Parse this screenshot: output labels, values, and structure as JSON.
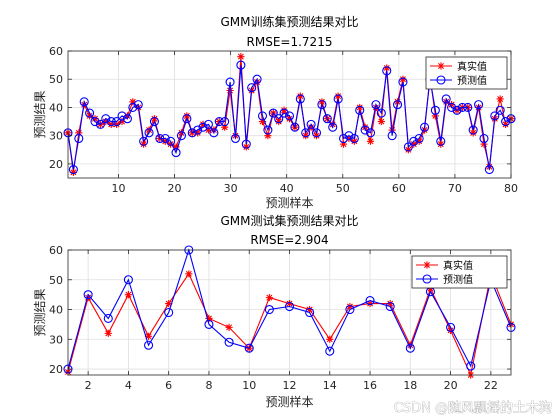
{
  "watermark": "CSDN @随风飘摇的土木狗",
  "legend_markers": {
    "actual": "red-asterisk",
    "predicted": "blue-open-circle"
  },
  "chart_data": [
    {
      "type": "line",
      "title": "GMM训练集预测结果对比",
      "subtitle": "RMSE=1.7215",
      "xlabel": "预测样本",
      "ylabel": "预测结果",
      "xlim": [
        1,
        80
      ],
      "ylim": [
        15,
        60
      ],
      "xticks": [
        10,
        20,
        30,
        40,
        50,
        60,
        70,
        80
      ],
      "yticks": [
        20,
        30,
        40,
        50,
        60
      ],
      "grid": true,
      "legend": "top-right",
      "series": [
        {
          "name": "真实值",
          "color": "#ff0000",
          "marker": "asterisk",
          "values": [
            31,
            17,
            31,
            41,
            37,
            36,
            34,
            35,
            34,
            34,
            35,
            37,
            42,
            40,
            27,
            32,
            36,
            29,
            28,
            27,
            26,
            31,
            37,
            31,
            31,
            34,
            32,
            32,
            35,
            33,
            46,
            30,
            58,
            26,
            46,
            49,
            35,
            30,
            38,
            35,
            39,
            36,
            33,
            44,
            30,
            33,
            30,
            42,
            36,
            34,
            44,
            27,
            29,
            28,
            40,
            33,
            28,
            40,
            35,
            54,
            32,
            42,
            50,
            25,
            27,
            28,
            32,
            51,
            37,
            27,
            42,
            41,
            39,
            40,
            40,
            31,
            40,
            27,
            19,
            36,
            43,
            34,
            36
          ]
        },
        {
          "name": "预测值",
          "color": "#0000ff",
          "marker": "circle",
          "values": [
            31,
            18,
            29,
            42,
            38,
            35,
            34,
            36,
            35,
            35,
            37,
            36,
            40,
            41,
            28,
            31,
            35,
            29,
            29,
            28,
            24,
            30,
            36,
            31,
            32,
            33,
            34,
            31,
            35,
            35,
            49,
            29,
            55,
            27,
            47,
            50,
            37,
            32,
            38,
            36,
            38,
            37,
            33,
            43,
            31,
            34,
            31,
            41,
            36,
            33,
            43,
            29,
            30,
            29,
            39,
            32,
            31,
            41,
            38,
            53,
            30,
            41,
            49,
            26,
            28,
            29,
            33,
            50,
            39,
            28,
            43,
            40,
            39,
            40,
            40,
            32,
            41,
            29,
            18,
            37,
            39,
            35,
            36
          ]
        }
      ]
    },
    {
      "type": "line",
      "title": "GMM测试集预测结果对比",
      "subtitle": "RMSE=2.904",
      "xlabel": "预测样本",
      "ylabel": "预测结果",
      "xlim": [
        1,
        23
      ],
      "ylim": [
        18,
        60
      ],
      "xticks": [
        2,
        4,
        6,
        8,
        10,
        12,
        14,
        16,
        18,
        20,
        22
      ],
      "yticks": [
        20,
        30,
        40,
        50,
        60
      ],
      "grid": true,
      "legend": "top-right",
      "series": [
        {
          "name": "真实值",
          "color": "#ff0000",
          "marker": "asterisk",
          "values": [
            19,
            44,
            32,
            45,
            31,
            42,
            52,
            37,
            34,
            27,
            44,
            42,
            40,
            30,
            41,
            42,
            42,
            28,
            47,
            33,
            18,
            52,
            35
          ]
        },
        {
          "name": "预测值",
          "color": "#0000ff",
          "marker": "circle",
          "values": [
            20,
            45,
            37,
            50,
            28,
            39,
            60,
            35,
            29,
            27,
            40,
            41,
            39,
            26,
            40,
            43,
            41,
            27,
            46,
            34,
            21,
            50,
            34
          ]
        }
      ]
    }
  ]
}
